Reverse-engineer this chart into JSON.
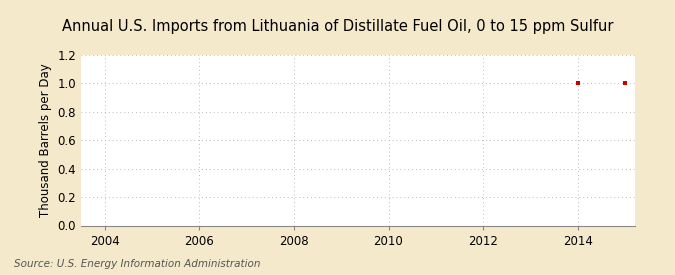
{
  "title": "Annual U.S. Imports from Lithuania of Distillate Fuel Oil, 0 to 15 ppm Sulfur",
  "ylabel": "Thousand Barrels per Day",
  "source": "Source: U.S. Energy Information Administration",
  "xlim": [
    2003.5,
    2015.2
  ],
  "ylim": [
    0.0,
    1.2
  ],
  "yticks": [
    0.0,
    0.2,
    0.4,
    0.6,
    0.8,
    1.0,
    1.2
  ],
  "xticks": [
    2004,
    2006,
    2008,
    2010,
    2012,
    2014
  ],
  "data_x": [
    2014,
    2015
  ],
  "data_y": [
    1.0,
    1.0
  ],
  "marker_color": "#cc0000",
  "marker": "s",
  "marker_size": 3,
  "bg_color": "#f5e9cc",
  "plot_bg_color": "#ffffff",
  "grid_color": "#bbbbbb",
  "title_fontsize": 10.5,
  "label_fontsize": 8.5,
  "tick_fontsize": 8.5,
  "source_fontsize": 7.5
}
